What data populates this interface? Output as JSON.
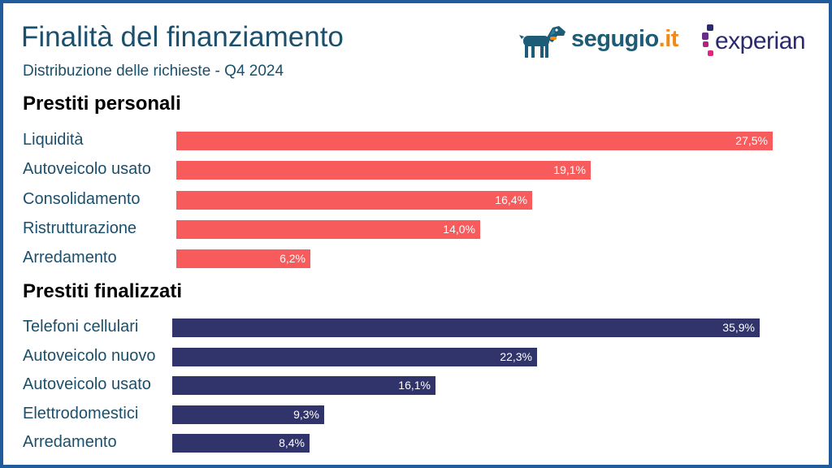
{
  "header": {
    "title": "Finalità del finanziamento",
    "subtitle": "Distribuzione delle richieste - Q4 2024"
  },
  "logos": {
    "segugio": {
      "name": "segugio",
      "tld": ".it"
    },
    "experian": {
      "name": "experian",
      "mark": "."
    }
  },
  "colors": {
    "personali": "#f75b5b",
    "finalizzati": "#31336b",
    "title": "#1b4f6b",
    "border": "#1f5c99"
  },
  "chart_data": [
    {
      "type": "bar",
      "orientation": "horizontal",
      "title": "Prestiti personali",
      "categories": [
        "Liquidità",
        "Autoveicolo usato",
        "Consolidamento",
        "Ristrutturazione",
        "Arredamento"
      ],
      "values": [
        27.5,
        19.1,
        16.4,
        14.0,
        6.2
      ],
      "value_labels": [
        "27,5%",
        "19,1%",
        "16,4%",
        "14,0%",
        "6,2%"
      ],
      "unit": "%",
      "color": "#f75b5b",
      "grid": false,
      "legend": "none"
    },
    {
      "type": "bar",
      "orientation": "horizontal",
      "title": "Prestiti finalizzati",
      "categories": [
        "Telefoni cellulari",
        "Autoveicolo nuovo",
        "Autoveicolo usato",
        "Elettrodomestici",
        "Arredamento"
      ],
      "values": [
        35.9,
        22.3,
        16.1,
        9.3,
        8.4
      ],
      "value_labels": [
        "35,9%",
        "22,3%",
        "16,1%",
        "9,3%",
        "8,4%"
      ],
      "unit": "%",
      "color": "#31336b",
      "grid": false,
      "legend": "none"
    }
  ]
}
